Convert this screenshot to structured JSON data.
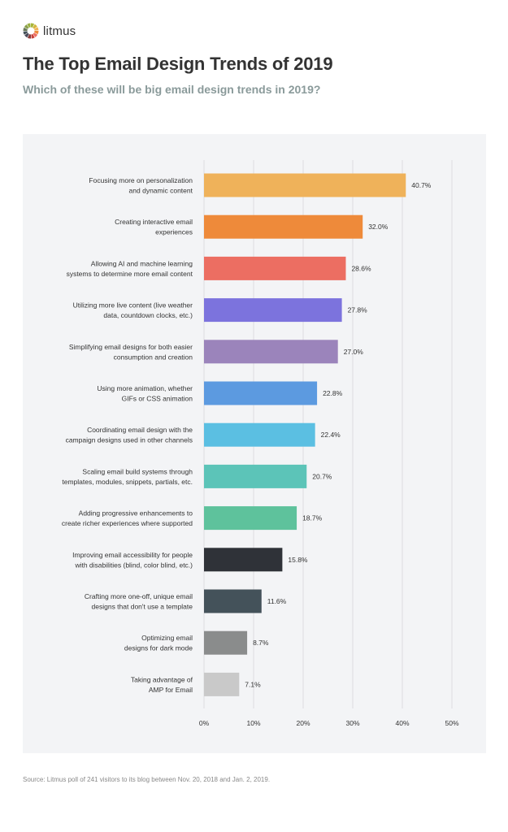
{
  "logo": {
    "text": "litmus"
  },
  "header": {
    "title": "The Top Email Design Trends of 2019",
    "subtitle": "Which of these will be big email design trends in 2019?"
  },
  "chart_data": {
    "type": "bar",
    "orientation": "horizontal",
    "title": "The Top Email Design Trends of 2019",
    "subtitle": "Which of these will be big email design trends in 2019?",
    "categories": [
      [
        "Focusing more on personalization",
        "and dynamic content"
      ],
      [
        "Creating interactive email",
        "experiences"
      ],
      [
        "Allowing AI and machine learning",
        "systems to determine more email content"
      ],
      [
        "Utilizing more live content (live weather",
        "data, countdown clocks, etc.)"
      ],
      [
        "Simplifying email designs for both easier",
        "consumption and creation"
      ],
      [
        "Using more animation, whether",
        "GIFs or CSS animation"
      ],
      [
        "Coordinating email design with the",
        "campaign designs used in other channels"
      ],
      [
        "Scaling email build systems through",
        "templates, modules, snippets, partials, etc."
      ],
      [
        "Adding progressive enhancements to",
        "create richer experiences where supported"
      ],
      [
        "Improving email accessibility for people",
        "with disabilities (blind, color blind, etc.)"
      ],
      [
        "Crafting more one-off, unique email",
        "designs that don't use a template"
      ],
      [
        "Optimizing email",
        "designs for dark mode"
      ],
      [
        "Taking advantage of",
        "AMP for Email"
      ]
    ],
    "values": [
      40.7,
      32.0,
      28.6,
      27.8,
      27.0,
      22.8,
      22.4,
      20.7,
      18.7,
      15.8,
      11.6,
      8.7,
      7.1
    ],
    "value_labels": [
      "40.7%",
      "32.0%",
      "28.6%",
      "27.8%",
      "27.0%",
      "22.8%",
      "22.4%",
      "20.7%",
      "18.7%",
      "15.8%",
      "11.6%",
      "8.7%",
      "7.1%"
    ],
    "colors": [
      "#efb25a",
      "#ee8a3a",
      "#ec6e62",
      "#7c73dd",
      "#9b84bb",
      "#5c9ae0",
      "#5bbfe2",
      "#5cc4b8",
      "#5ec29c",
      "#2f3238",
      "#44525a",
      "#8a8c8c",
      "#c9c9c9"
    ],
    "xlim": [
      0,
      50
    ],
    "xticks": [
      0,
      10,
      20,
      30,
      40,
      50
    ],
    "xtick_labels": [
      "0%",
      "10%",
      "20%",
      "30%",
      "40%",
      "50%"
    ],
    "grid": true,
    "xlabel": "",
    "ylabel": ""
  },
  "footer": {
    "source": "Source: Litmus poll of 241 visitors to its blog between Nov. 20, 2018 and Jan. 2, 2019."
  }
}
